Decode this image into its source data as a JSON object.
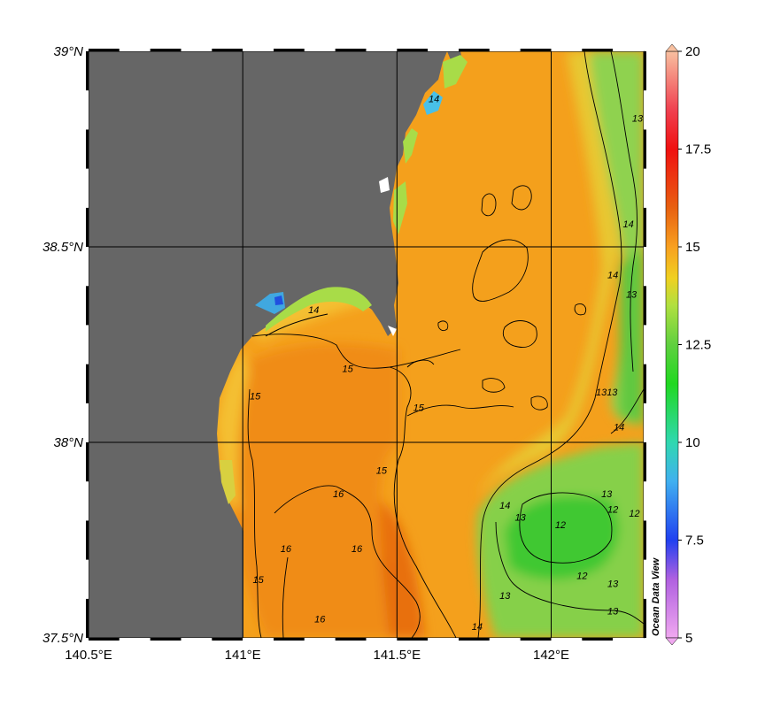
{
  "map": {
    "lon_range": [
      140.5,
      142.3
    ],
    "lat_range": [
      37.5,
      39.0
    ],
    "lon_ticks": [
      {
        "value": 140.5,
        "label": "140.5°E"
      },
      {
        "value": 141.0,
        "label": "141°E"
      },
      {
        "value": 141.5,
        "label": "141.5°E"
      },
      {
        "value": 142.0,
        "label": "142°E"
      }
    ],
    "lat_ticks": [
      {
        "value": 39.0,
        "label": "39°N"
      },
      {
        "value": 38.5,
        "label": "38.5°N"
      },
      {
        "value": 38.0,
        "label": "38°N"
      },
      {
        "value": 37.5,
        "label": "37.5°N"
      }
    ],
    "land_color": "#666666",
    "contour_labels": [
      {
        "text": "15",
        "lon": 141.34,
        "lat": 38.18
      },
      {
        "text": "15",
        "lon": 141.57,
        "lat": 38.08
      },
      {
        "text": "15",
        "lon": 141.04,
        "lat": 38.11
      },
      {
        "text": "15",
        "lon": 141.45,
        "lat": 37.92
      },
      {
        "text": "15",
        "lon": 141.05,
        "lat": 37.64
      },
      {
        "text": "14",
        "lon": 141.23,
        "lat": 38.33
      },
      {
        "text": "14",
        "lon": 141.62,
        "lat": 38.87
      },
      {
        "text": "14",
        "lon": 142.25,
        "lat": 38.55
      },
      {
        "text": "14",
        "lon": 142.2,
        "lat": 38.42
      },
      {
        "text": "14",
        "lon": 142.22,
        "lat": 38.03
      },
      {
        "text": "14",
        "lon": 141.85,
        "lat": 37.83
      },
      {
        "text": "14",
        "lon": 141.76,
        "lat": 37.52
      },
      {
        "text": "16",
        "lon": 141.31,
        "lat": 37.86
      },
      {
        "text": "16",
        "lon": 141.14,
        "lat": 37.72
      },
      {
        "text": "16",
        "lon": 141.37,
        "lat": 37.72
      },
      {
        "text": "16",
        "lon": 141.25,
        "lat": 37.54
      },
      {
        "text": "13",
        "lon": 142.28,
        "lat": 38.82
      },
      {
        "text": "13",
        "lon": 142.26,
        "lat": 38.37
      },
      {
        "text": "1313",
        "lon": 142.18,
        "lat": 38.12
      },
      {
        "text": "13",
        "lon": 142.18,
        "lat": 37.86
      },
      {
        "text": "13",
        "lon": 141.9,
        "lat": 37.8
      },
      {
        "text": "13",
        "lon": 141.85,
        "lat": 37.6
      },
      {
        "text": "13",
        "lon": 142.2,
        "lat": 37.63
      },
      {
        "text": "13",
        "lon": 142.2,
        "lat": 37.56
      },
      {
        "text": "12",
        "lon": 142.2,
        "lat": 37.82
      },
      {
        "text": "12",
        "lon": 142.03,
        "lat": 37.78
      },
      {
        "text": "12",
        "lon": 142.1,
        "lat": 37.65
      },
      {
        "text": "12",
        "lon": 142.27,
        "lat": 37.81
      }
    ]
  },
  "colorbar": {
    "min": 5,
    "max": 20,
    "tick_labels": [
      "20",
      "17.5",
      "15",
      "12.5",
      "10",
      "7.5",
      "5"
    ],
    "stops": [
      {
        "value": 5,
        "color": "#f0a8f0"
      },
      {
        "value": 6.5,
        "color": "#b060e0"
      },
      {
        "value": 7.5,
        "color": "#2040f0"
      },
      {
        "value": 9,
        "color": "#40b0f0"
      },
      {
        "value": 10,
        "color": "#30d8b0"
      },
      {
        "value": 11.5,
        "color": "#20d820"
      },
      {
        "value": 12.5,
        "color": "#60d040"
      },
      {
        "value": 13.5,
        "color": "#b0e040"
      },
      {
        "value": 14.2,
        "color": "#f0d020"
      },
      {
        "value": 15,
        "color": "#f8a020"
      },
      {
        "value": 16,
        "color": "#e86010"
      },
      {
        "value": 17.5,
        "color": "#f01010"
      },
      {
        "value": 18.5,
        "color": "#f04050"
      },
      {
        "value": 20,
        "color": "#f8c0a0"
      }
    ]
  },
  "watermark": "Ocean Data View"
}
